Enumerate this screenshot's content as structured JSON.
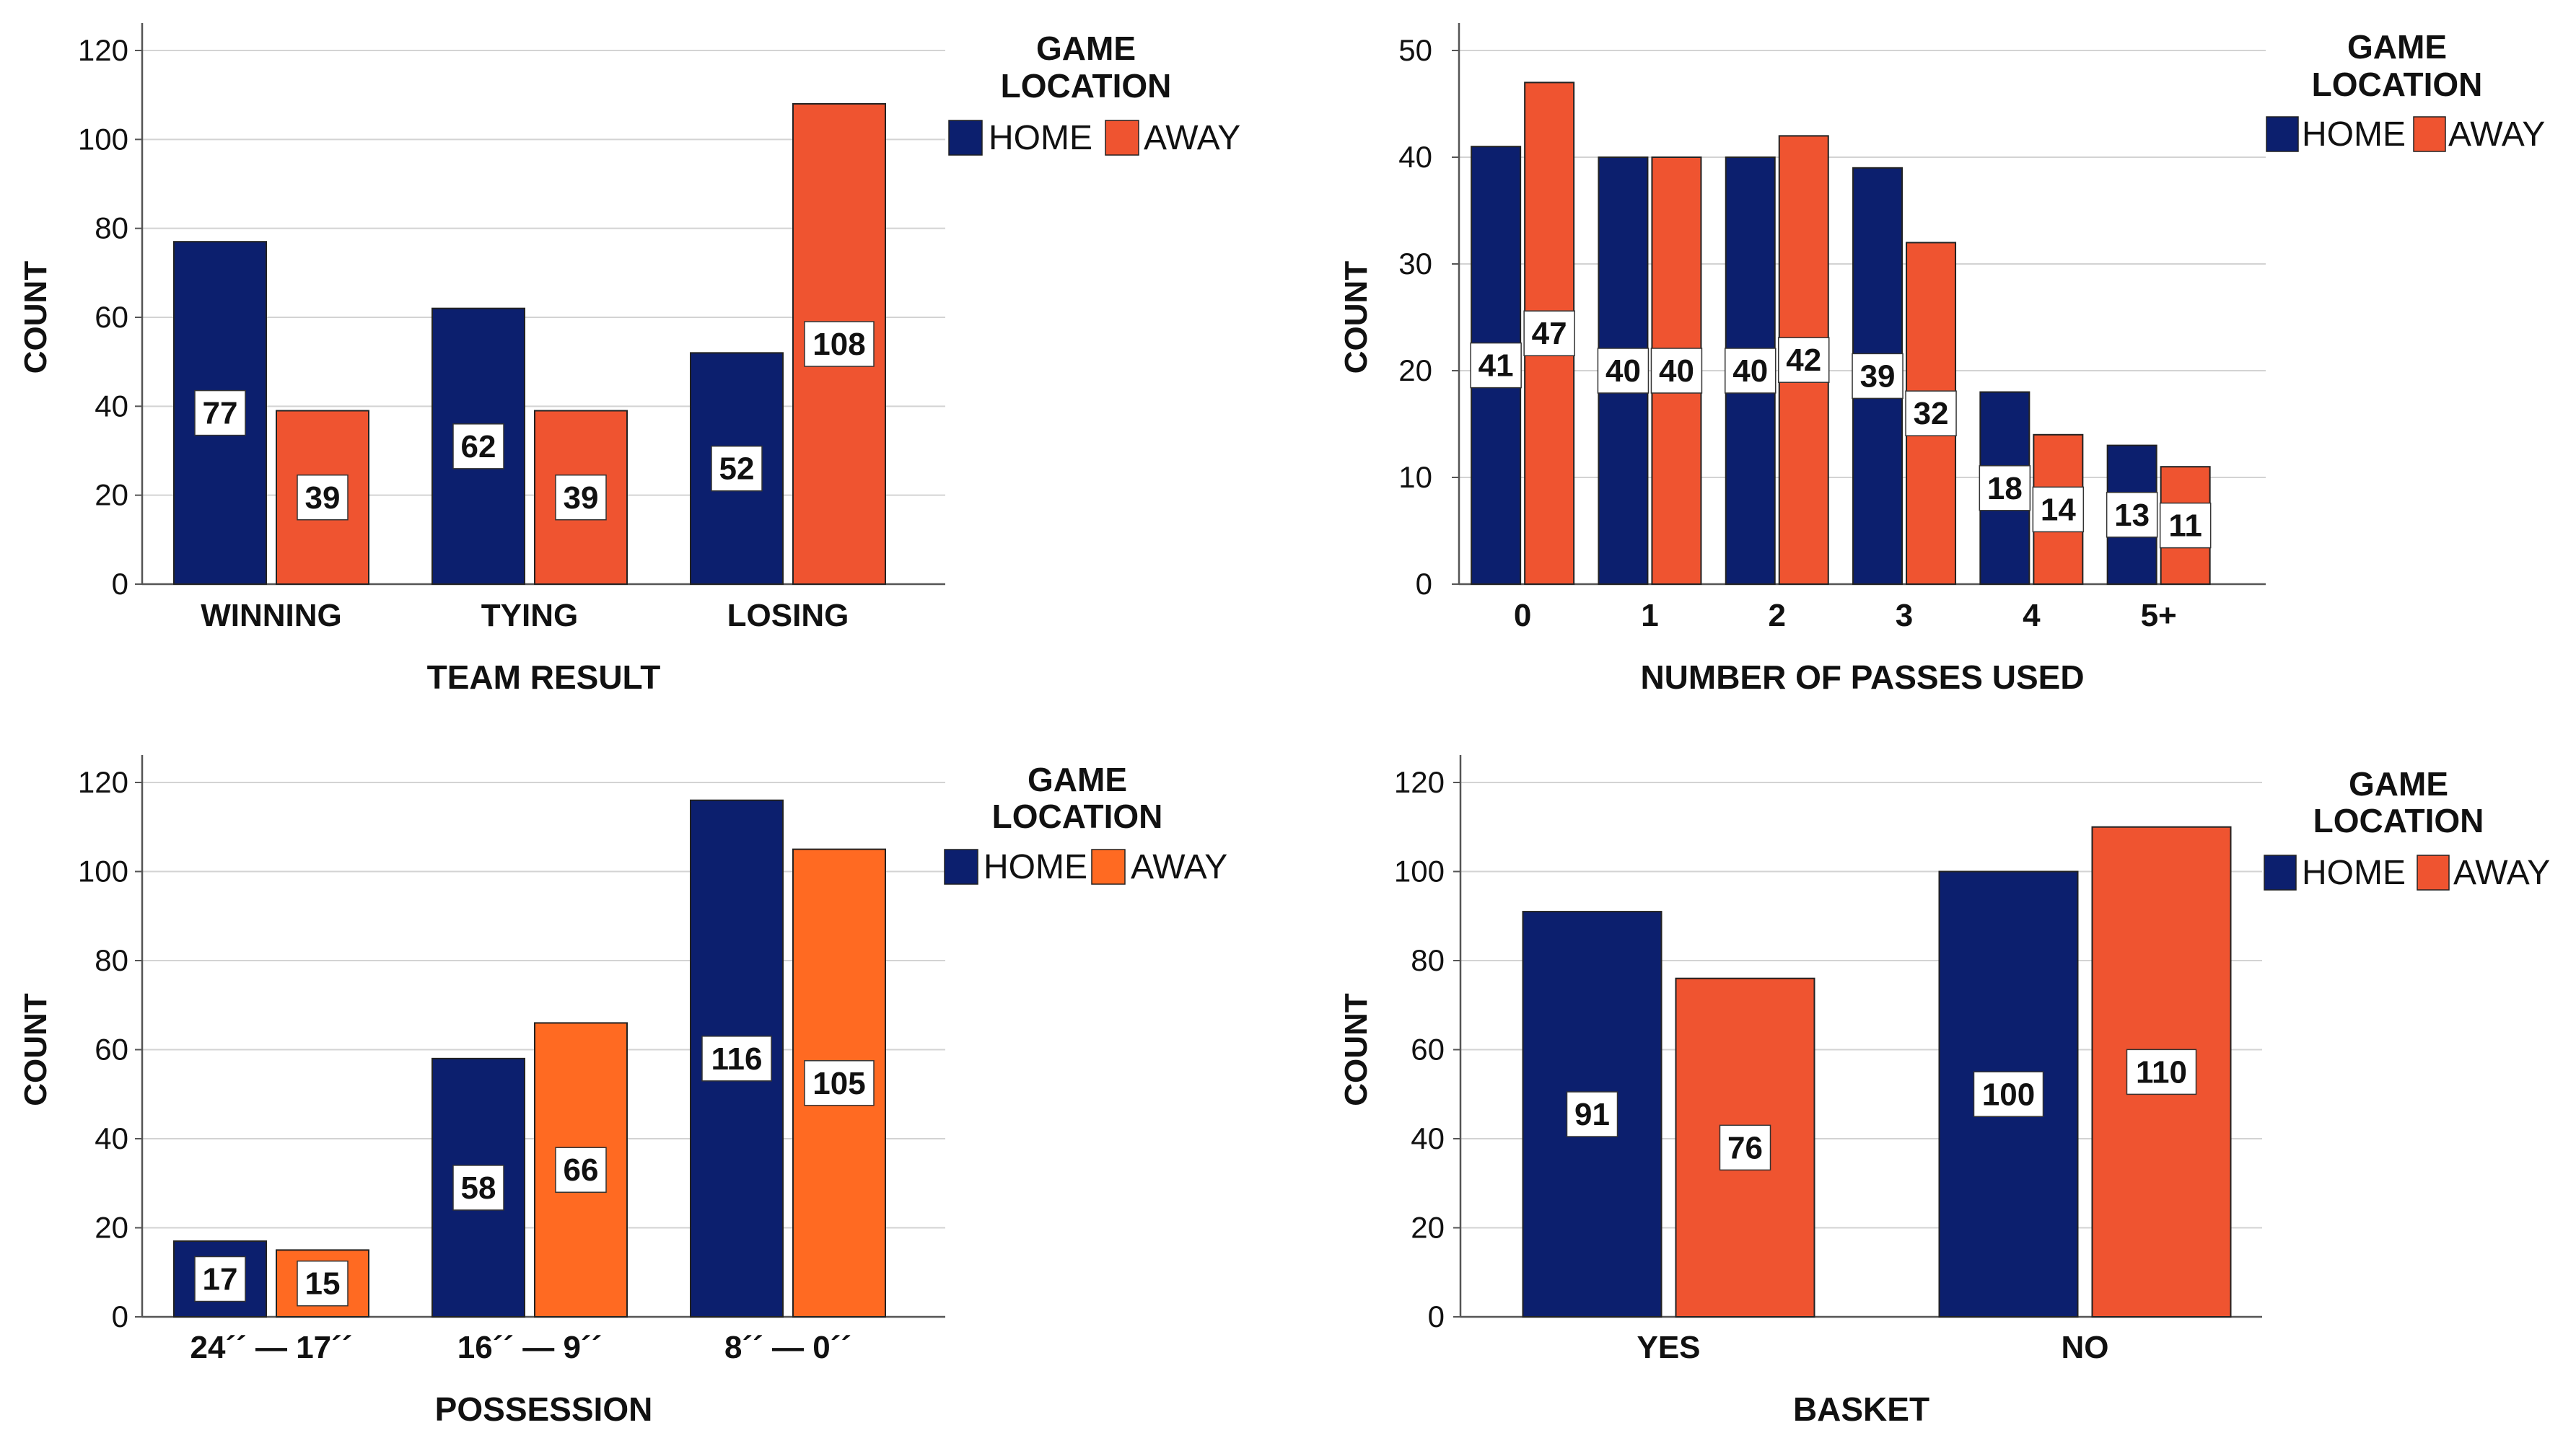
{
  "colors": {
    "home": "#0c1f6e",
    "away": "#ef5430",
    "away_alt": "#ff6a22",
    "grid": "#d3d3d3",
    "axis": "#555555",
    "text": "#111111",
    "label_box": "#ffffff"
  },
  "chart_data": [
    {
      "type": "bar",
      "xlabel": "TEAM RESULT",
      "ylabel": "COUNT",
      "categories": [
        "WINNING",
        "TYING",
        "LOSING"
      ],
      "series": [
        {
          "name": "HOME",
          "values": [
            77,
            62,
            52
          ]
        },
        {
          "name": "AWAY",
          "values": [
            39,
            39,
            108
          ]
        }
      ],
      "ylim": [
        0,
        120
      ],
      "yticks": [
        "0",
        "20",
        "40",
        "60",
        "80",
        "100",
        "120"
      ],
      "grid": true,
      "legend": {
        "title": "GAME LOCATION",
        "title_lines": [
          "GAME",
          "LOCATION"
        ],
        "placement": "top-right"
      }
    },
    {
      "type": "bar",
      "xlabel": "NUMBER OF PASSES USED",
      "ylabel": "COUNT",
      "categories": [
        "0",
        "1",
        "2",
        "3",
        "4",
        "5+"
      ],
      "series": [
        {
          "name": "HOME",
          "values": [
            41,
            40,
            40,
            39,
            18,
            13
          ]
        },
        {
          "name": "AWAY",
          "values": [
            47,
            40,
            42,
            32,
            14,
            11
          ]
        }
      ],
      "ylim": [
        0,
        50
      ],
      "yticks": [
        "0",
        "10",
        "20",
        "30",
        "40",
        "50"
      ],
      "grid": true,
      "legend": {
        "title": "GAME LOCATION",
        "title_lines": [
          "GAME",
          "LOCATION"
        ],
        "placement": "top-right"
      }
    },
    {
      "type": "bar",
      "xlabel": "POSSESSION",
      "ylabel": "COUNT",
      "categories": [
        "24´´ — 17´´",
        "16´´ — 9´´",
        "8´´ — 0´´"
      ],
      "series": [
        {
          "name": "HOME",
          "values": [
            17,
            58,
            116
          ]
        },
        {
          "name": "AWAY",
          "values": [
            15,
            66,
            105
          ]
        }
      ],
      "ylim": [
        0,
        120
      ],
      "yticks": [
        "0",
        "20",
        "40",
        "60",
        "80",
        "100",
        "120"
      ],
      "grid": true,
      "legend": {
        "title": "GAME LOCATION",
        "title_lines": [
          "GAME",
          "LOCATION"
        ],
        "placement": "top-right"
      }
    },
    {
      "type": "bar",
      "xlabel": "BASKET",
      "ylabel": "COUNT",
      "categories": [
        "YES",
        "NO"
      ],
      "series": [
        {
          "name": "HOME",
          "values": [
            91,
            100
          ]
        },
        {
          "name": "AWAY",
          "values": [
            76,
            110
          ]
        }
      ],
      "ylim": [
        0,
        120
      ],
      "yticks": [
        "0",
        "20",
        "40",
        "60",
        "80",
        "100",
        "120"
      ],
      "grid": true,
      "legend": {
        "title": "GAME LOCATION",
        "title_lines": [
          "GAME",
          "LOCATION"
        ],
        "placement": "top-right"
      }
    }
  ]
}
